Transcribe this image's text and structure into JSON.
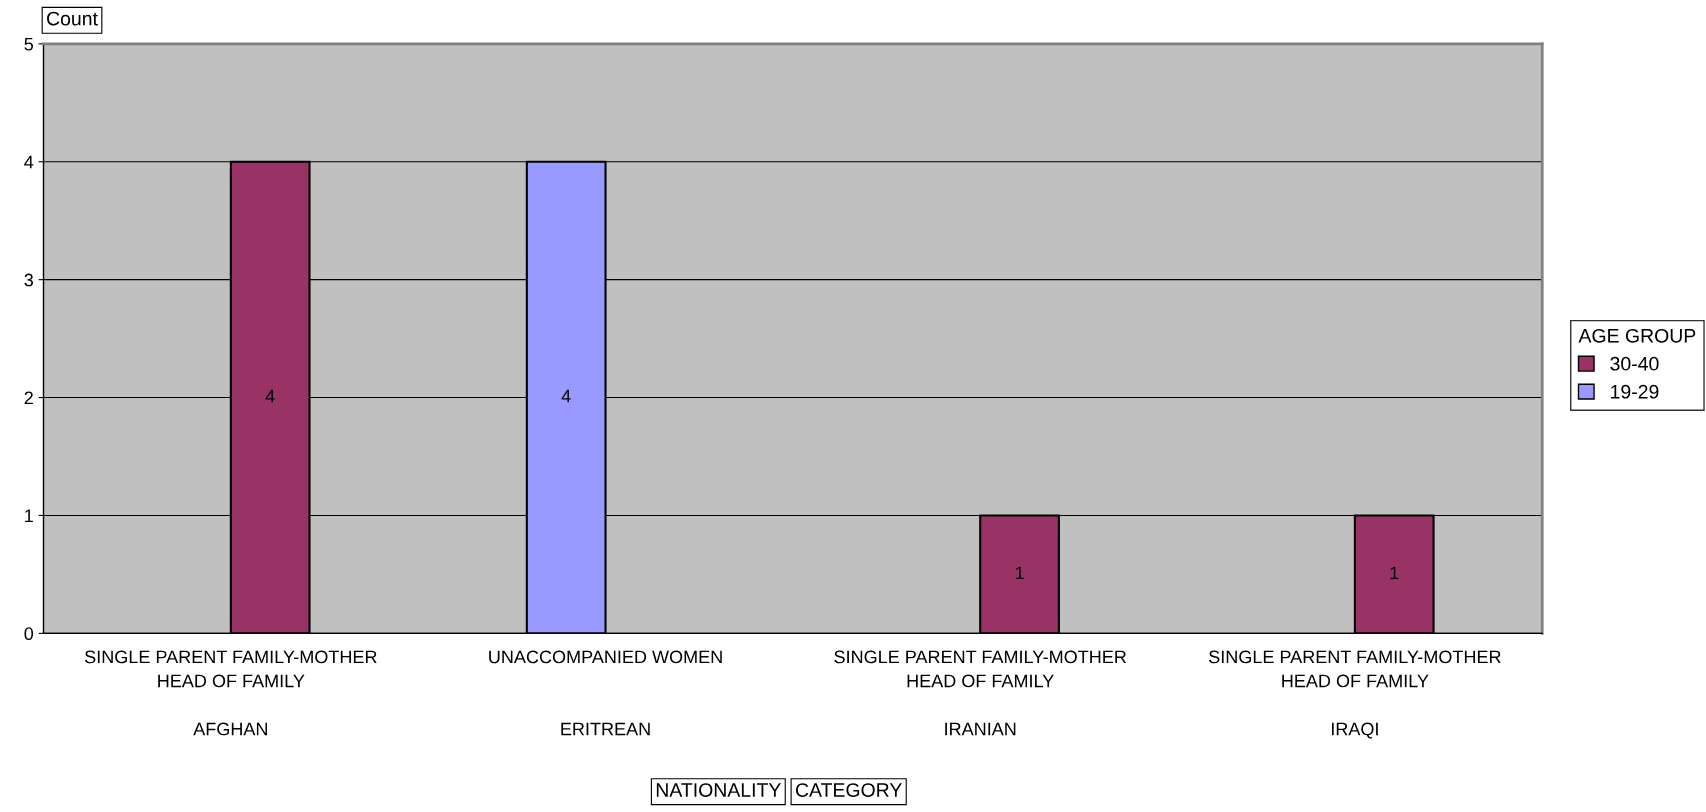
{
  "chart_data": {
    "type": "bar",
    "ylabel": "Count",
    "annotations": [
      "NATIONALITY",
      "CATEGORY"
    ],
    "legend_title": "AGE GROUP",
    "categories": [
      "SINGLE PARENT FAMILY-MOTHER\nHEAD OF FAMILY\n\nAFGHAN",
      "UNACCOMPANIED WOMEN\n\n\nERITREAN",
      "SINGLE PARENT FAMILY-MOTHER\nHEAD OF FAMILY\n\nIRANIAN",
      "SINGLE PARENT FAMILY-MOTHER\nHEAD OF FAMILY\n\nIRAQI"
    ],
    "series": [
      {
        "name": "30-40",
        "color": "#993366",
        "values": [
          4,
          null,
          1,
          1
        ]
      },
      {
        "name": "19-29",
        "color": "#9999ff",
        "values": [
          null,
          4,
          null,
          null
        ]
      }
    ],
    "ylim": [
      0,
      5
    ],
    "yticks": [
      0,
      1,
      2,
      3,
      4,
      5
    ],
    "grid": "y",
    "legend": "right",
    "data_labels": true
  }
}
